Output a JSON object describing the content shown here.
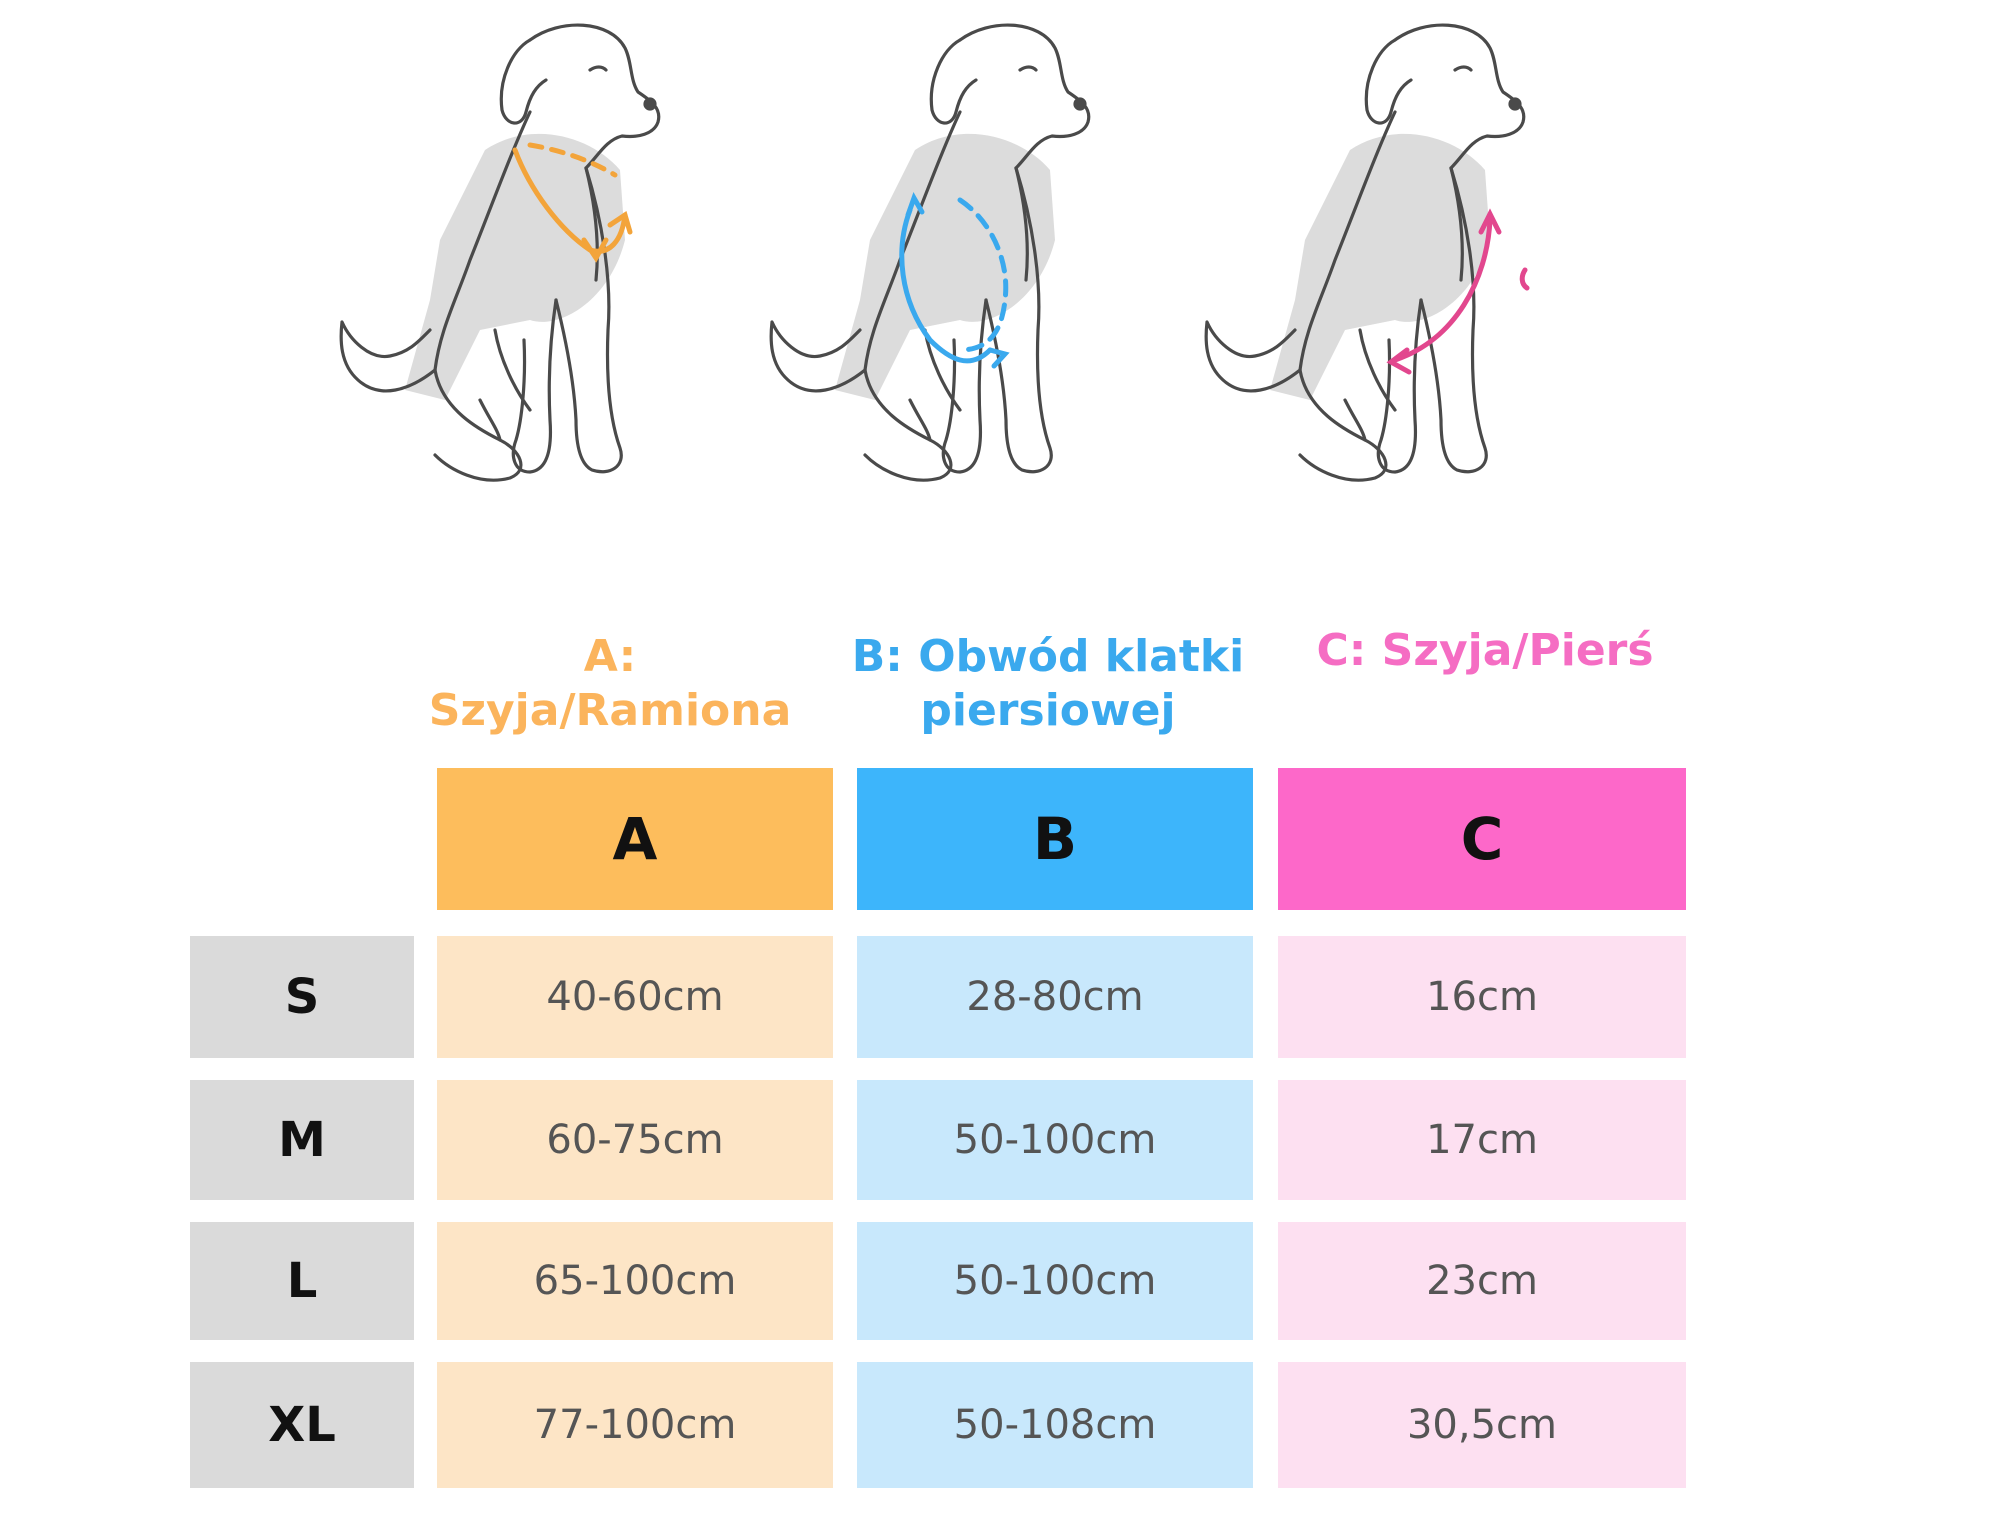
{
  "captions": {
    "a": "A: Szyja/Ramiona",
    "b_line1": "B: Obwód klatki",
    "b_line2": "piersiowej",
    "c": "C: Szyja/Pierś"
  },
  "table": {
    "headers": [
      "A",
      "B",
      "C"
    ],
    "header_colors": [
      "#fdbd5c",
      "#3db5fb",
      "#fd68c9"
    ],
    "cell_colors": [
      "#fde5c6",
      "#c8e8fc",
      "#fde0f1"
    ],
    "rows": [
      {
        "size": "S",
        "a": "40-60cm",
        "b": "28-80cm",
        "c": "16cm"
      },
      {
        "size": "M",
        "a": "60-75cm",
        "b": "50-100cm",
        "c": "17cm"
      },
      {
        "size": "L",
        "a": "65-100cm",
        "b": "50-100cm",
        "c": "23cm"
      },
      {
        "size": "XL",
        "a": "77-100cm",
        "b": "50-108cm",
        "c": "30,5cm"
      }
    ]
  },
  "illustrations": [
    {
      "icon": "dog-neck-shoulders-measure-icon",
      "accent": "#f3a43a"
    },
    {
      "icon": "dog-chest-girth-measure-icon",
      "accent": "#3aa9ee"
    },
    {
      "icon": "dog-neck-chest-measure-icon",
      "accent": "#e2478e"
    }
  ]
}
